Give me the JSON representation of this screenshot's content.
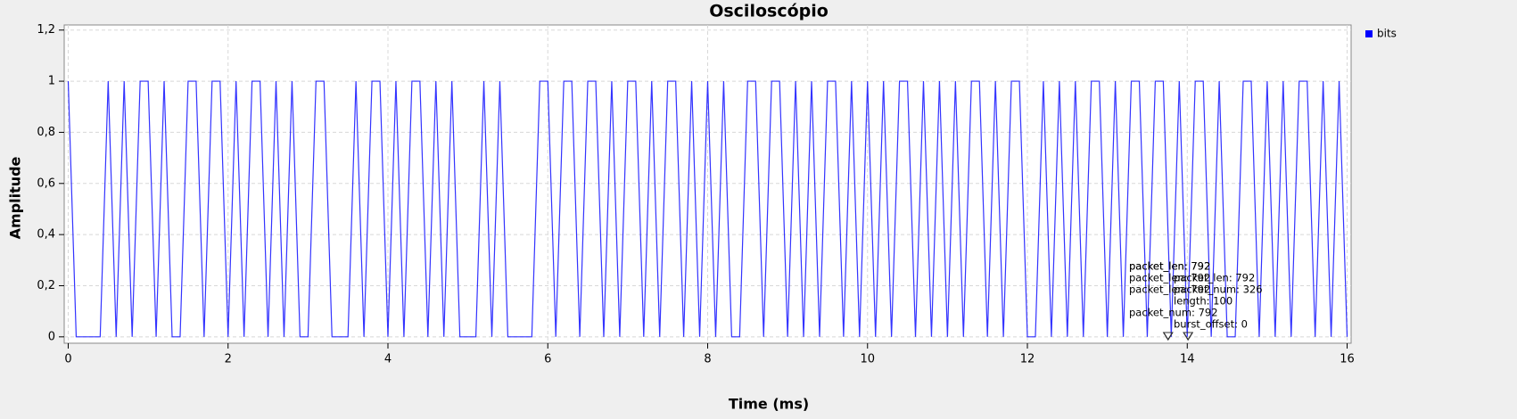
{
  "chart_data": {
    "type": "line",
    "title": "Osciloscópio",
    "x_label": "Time (ms)",
    "y_label": "Amplitude",
    "xlim": [
      -0.05,
      16.05
    ],
    "ylim": [
      -0.025,
      1.22
    ],
    "xticks": [
      0,
      2,
      4,
      6,
      8,
      10,
      12,
      14,
      16
    ],
    "yticks": [
      0,
      {
        "value": 0.2,
        "label": "0,2"
      },
      {
        "value": 0.4,
        "label": "0,4"
      },
      {
        "value": 0.6,
        "label": "0,6"
      },
      {
        "value": 0.8,
        "label": "0,8"
      },
      1,
      {
        "value": 1.2,
        "label": "1,2"
      }
    ],
    "grid": true,
    "legend": "right",
    "x": [
      0,
      0.1,
      0.2,
      0.3,
      0.4,
      0.5,
      0.6,
      0.7,
      0.8,
      0.9,
      1,
      1.1,
      1.2,
      1.3,
      1.4,
      1.5,
      1.6,
      1.7,
      1.8,
      1.9,
      2,
      2.1,
      2.2,
      2.3,
      2.4,
      2.5,
      2.6,
      2.7,
      2.8,
      2.9,
      3,
      3.1,
      3.2,
      3.3,
      3.4,
      3.5,
      3.6,
      3.7,
      3.8,
      3.9,
      4,
      4.1,
      4.2,
      4.3,
      4.4,
      4.5,
      4.6,
      4.7,
      4.8,
      4.9,
      5,
      5.1,
      5.2,
      5.3,
      5.4,
      5.5,
      5.6,
      5.7,
      5.8,
      5.9,
      6,
      6.1,
      6.2,
      6.3,
      6.4,
      6.5,
      6.6,
      6.7,
      6.8,
      6.9,
      7,
      7.1,
      7.2,
      7.3,
      7.4,
      7.5,
      7.6,
      7.7,
      7.8,
      7.9,
      8,
      8.1,
      8.2,
      8.3,
      8.4,
      8.5,
      8.6,
      8.7,
      8.8,
      8.9,
      9,
      9.1,
      9.2,
      9.3,
      9.4,
      9.5,
      9.6,
      9.7,
      9.8,
      9.9,
      10,
      10.1,
      10.2,
      10.3,
      10.4,
      10.5,
      10.6,
      10.7,
      10.8,
      10.9,
      11,
      11.1,
      11.2,
      11.3,
      11.4,
      11.5,
      11.6,
      11.7,
      11.8,
      11.9,
      12,
      12.1,
      12.2,
      12.3,
      12.4,
      12.5,
      12.6,
      12.7,
      12.8,
      12.9,
      13,
      13.1,
      13.2,
      13.3,
      13.4,
      13.5,
      13.6,
      13.7,
      13.8,
      13.9,
      14,
      14.1,
      14.2,
      14.3,
      14.4,
      14.5,
      14.6,
      14.7,
      14.8,
      14.9,
      15,
      15.1,
      15.2,
      15.3,
      15.4,
      15.5,
      15.6,
      15.7,
      15.8,
      15.9,
      16
    ],
    "series": [
      {
        "name": "bits",
        "color": "#0000ff",
        "values": [
          1,
          0,
          0,
          0,
          0,
          1,
          0,
          1,
          0,
          1,
          1,
          0,
          1,
          0,
          0,
          1,
          1,
          0,
          1,
          1,
          0,
          1,
          0,
          1,
          1,
          0,
          1,
          0,
          1,
          0,
          0,
          1,
          1,
          0,
          0,
          0,
          1,
          0,
          1,
          1,
          0,
          1,
          0,
          1,
          1,
          0,
          1,
          0,
          1,
          0,
          0,
          0,
          1,
          0,
          1,
          0,
          0,
          0,
          0,
          1,
          1,
          0,
          1,
          1,
          0,
          1,
          1,
          0,
          1,
          0,
          1,
          1,
          0,
          1,
          0,
          1,
          1,
          0,
          1,
          0,
          1,
          0,
          1,
          0,
          0,
          1,
          1,
          0,
          1,
          1,
          0,
          1,
          0,
          1,
          0,
          1,
          1,
          0,
          1,
          0,
          1,
          0,
          1,
          0,
          1,
          1,
          0,
          1,
          0,
          1,
          0,
          1,
          0,
          1,
          1,
          0,
          1,
          0,
          1,
          1,
          0,
          0,
          1,
          0,
          1,
          0,
          1,
          0,
          1,
          1,
          0,
          1,
          0,
          1,
          1,
          0,
          1,
          1,
          0,
          1,
          0,
          1,
          1,
          0,
          1,
          0,
          0,
          1,
          1,
          0,
          1,
          0,
          1,
          0,
          1,
          1,
          0,
          1,
          0,
          1,
          0
        ]
      }
    ],
    "annotations": [
      {
        "x": 13.76,
        "text": "packet_len: 792"
      },
      {
        "x": 13.76,
        "text": "packet_len: 792"
      },
      {
        "x": 13.76,
        "text": "packet_len: 792"
      },
      {
        "x": 14.01,
        "text": "length: 100"
      },
      {
        "x": 13.76,
        "text": "packet_num: 792"
      },
      {
        "x": 14.01,
        "text": "burst_offset: 0"
      },
      {
        "x": 13.76,
        "text": "packet_len: 792"
      },
      {
        "x": 14.01,
        "text": "packet_len: 792"
      },
      {
        "x": 14.01,
        "text": "packet_num: 326"
      }
    ]
  }
}
